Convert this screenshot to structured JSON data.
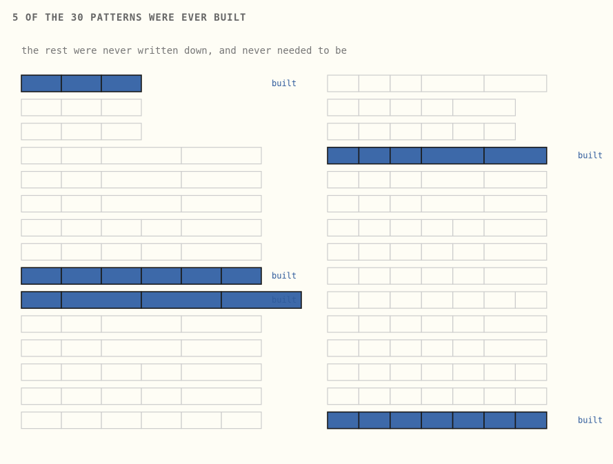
{
  "title": "5 OF THE 30 PATTERNS WERE EVER BUILT",
  "subtitle": "the rest were never written down, and never needed to be",
  "built_label": "built",
  "colors": {
    "built_fill": "#3d69a9",
    "built_stroke": "#1a1a1a",
    "unbuilt_stroke": "#cccccc",
    "label": "#2f5b9c"
  },
  "columns": [
    {
      "patterns": [
        {
          "segments": [
            1,
            1,
            1
          ],
          "built": true
        },
        {
          "segments": [
            1,
            1,
            1
          ],
          "built": false
        },
        {
          "segments": [
            1,
            1,
            1
          ],
          "built": false
        },
        {
          "segments": [
            1,
            1,
            2,
            2
          ],
          "built": false
        },
        {
          "segments": [
            1,
            1,
            2,
            2
          ],
          "built": false
        },
        {
          "segments": [
            1,
            1,
            2,
            2
          ],
          "built": false
        },
        {
          "segments": [
            1,
            1,
            1,
            1,
            2
          ],
          "built": false
        },
        {
          "segments": [
            1,
            1,
            1,
            1,
            2
          ],
          "built": false
        },
        {
          "segments": [
            1,
            1,
            1,
            1,
            1,
            1
          ],
          "built": true
        },
        {
          "segments": [
            1,
            2,
            2,
            2
          ],
          "built": true
        },
        {
          "segments": [
            1,
            1,
            2,
            2
          ],
          "built": false
        },
        {
          "segments": [
            1,
            1,
            2,
            2
          ],
          "built": false
        },
        {
          "segments": [
            1,
            1,
            1,
            1,
            2
          ],
          "built": false
        },
        {
          "segments": [
            1,
            1,
            1,
            1,
            2
          ],
          "built": false
        },
        {
          "segments": [
            1,
            1,
            1,
            1,
            1,
            1
          ],
          "built": false
        }
      ]
    },
    {
      "patterns": [
        {
          "segments": [
            1,
            1,
            1,
            2,
            2
          ],
          "built": false
        },
        {
          "segments": [
            1,
            1,
            1,
            1,
            2
          ],
          "built": false
        },
        {
          "segments": [
            1,
            1,
            1,
            1,
            1,
            1
          ],
          "built": false
        },
        {
          "segments": [
            1,
            1,
            1,
            2,
            2
          ],
          "built": true
        },
        {
          "segments": [
            1,
            1,
            1,
            2,
            2
          ],
          "built": false
        },
        {
          "segments": [
            1,
            1,
            1,
            2,
            2
          ],
          "built": false
        },
        {
          "segments": [
            1,
            1,
            1,
            1,
            1,
            2
          ],
          "built": false
        },
        {
          "segments": [
            1,
            1,
            1,
            1,
            1,
            2
          ],
          "built": false
        },
        {
          "segments": [
            1,
            1,
            1,
            1,
            1,
            2
          ],
          "built": false
        },
        {
          "segments": [
            1,
            1,
            1,
            1,
            1,
            1,
            1
          ],
          "built": false
        },
        {
          "segments": [
            1,
            1,
            1,
            1,
            1,
            2
          ],
          "built": false
        },
        {
          "segments": [
            1,
            1,
            1,
            1,
            1,
            2
          ],
          "built": false
        },
        {
          "segments": [
            1,
            1,
            1,
            1,
            1,
            1,
            1
          ],
          "built": false
        },
        {
          "segments": [
            1,
            1,
            1,
            1,
            1,
            1,
            1
          ],
          "built": false
        },
        {
          "segments": [
            1,
            1,
            1,
            1,
            1,
            1,
            1
          ],
          "built": true
        }
      ]
    }
  ]
}
